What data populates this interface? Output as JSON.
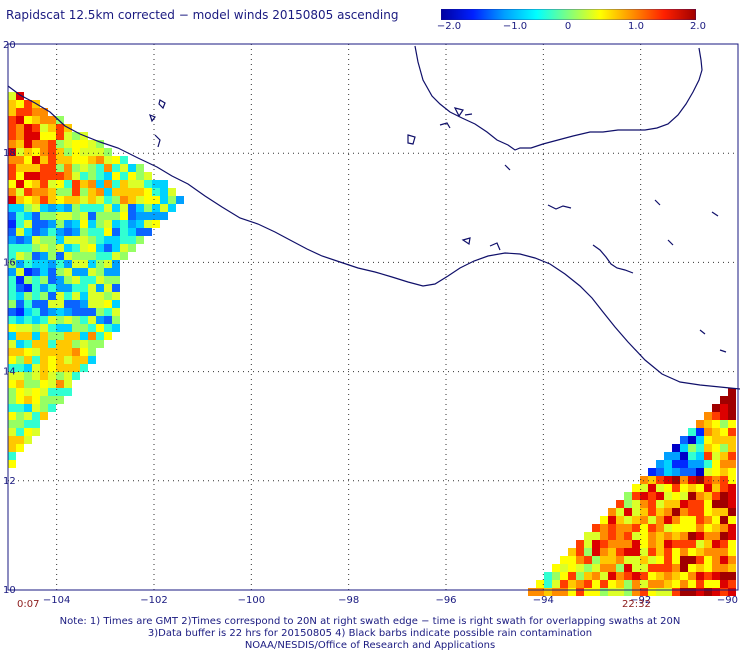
{
  "title": "Rapidscat 12.5km corrected − model winds 20150805 ascending",
  "colorbar": {
    "ticks": [
      "−2.0",
      "−1.0",
      "0",
      "1.0",
      "2.0"
    ],
    "tick_values": [
      -2.0,
      -1.0,
      0,
      1.0,
      2.0
    ],
    "colors": [
      "#0000a0",
      "#0020ff",
      "#00a0ff",
      "#00ffff",
      "#7fff7f",
      "#ffff00",
      "#ff9000",
      "#ff2000",
      "#a00000"
    ]
  },
  "map": {
    "lon_range": [
      -105,
      -90
    ],
    "lat_range": [
      10,
      20
    ],
    "lon_ticks": [
      -104,
      -102,
      -100,
      -98,
      -96,
      -94,
      -92,
      -90
    ],
    "lon_labels": [
      "−104",
      "−102",
      "−100",
      "−98",
      "−96",
      "−94",
      "−92",
      "−90"
    ],
    "lat_ticks": [
      10,
      12,
      14,
      16,
      18,
      20
    ],
    "lat_labels": [
      "10",
      "12",
      "14",
      "16",
      "18",
      "20"
    ],
    "grid": "dotted",
    "coast_color": "#10106a"
  },
  "times": {
    "left": "0:07",
    "right": "22:32"
  },
  "notes": [
    "Note: 1) Times are GMT 2)Times correspond to 20N at right swath edge − time is right swath for overlapping swaths at 20N",
    "3)Data buffer is 22 hrs for 20150805 4) Black barbs indicate possible rain contamination",
    "NOAA/NESDIS/Office of Research and Applications"
  ]
}
